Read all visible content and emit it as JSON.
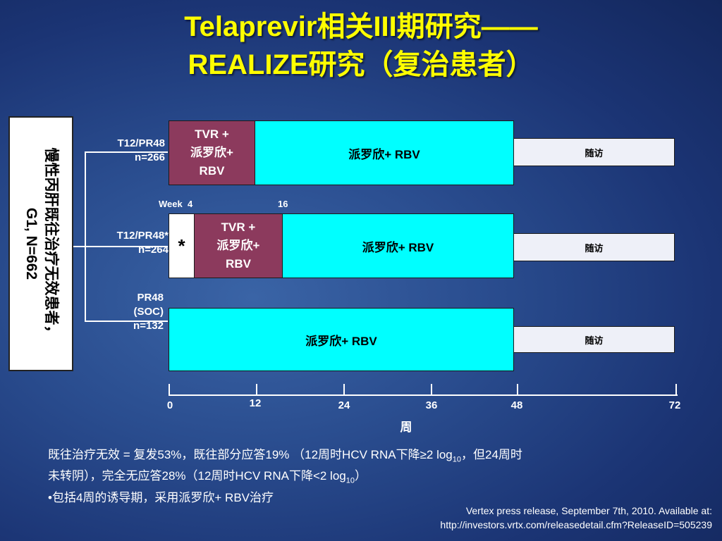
{
  "title": {
    "line1": "Telaprevir相关III期研究——",
    "line2": "REALIZE研究（复治患者）"
  },
  "population": {
    "line1": "慢性丙肝既往治疗无效患者，",
    "line2": "G1, N=662"
  },
  "arms": [
    {
      "name_line1": "T12/PR48",
      "name_line2": "n=266",
      "tvr_label": [
        "TVR +",
        "派罗欣+",
        "RBV"
      ],
      "peg_label": "派罗欣+ RBV",
      "followup_label": "随访"
    },
    {
      "name_line1": "T12/PR48*",
      "name_line2": "n=264",
      "lead_in_label": "*",
      "tvr_label": [
        "TVR +",
        "派罗欣+",
        "RBV"
      ],
      "peg_label": "派罗欣+ RBV",
      "followup_label": "随访"
    },
    {
      "name_line1": "PR48",
      "name_line2": "(SOC)",
      "name_line3": "n=132",
      "peg_label": "派罗欣+ RBV",
      "followup_label": "随访"
    }
  ],
  "week_markers": {
    "label": "Week",
    "first": "4",
    "second": "16"
  },
  "axis": {
    "ticks": [
      "0",
      "12",
      "24",
      "36",
      "48",
      "72"
    ],
    "title": "周"
  },
  "notes": {
    "line1_a": "既往治疗无效 = 复发53%，既往部分应答19% （12周时HCV RNA下降≥2 log",
    "line1_sub": "10",
    "line1_b": "，但24周时",
    "line2_a": "未转阴），完全无应答28%（12周时HCV RNA下降<2 log",
    "line2_sub": "10",
    "line2_b": "）",
    "line3": "•包括4周的诱导期，采用派罗欣+ RBV治疗"
  },
  "reference": {
    "line1": "Vertex press release, September 7th, 2010. Available at:",
    "line2": "http://investors.vrtx.com/releasedetail.cfm?ReleaseID=505239"
  },
  "colors": {
    "title": "#ffff00",
    "tvr": "#8c3a5d",
    "peg": "#00ffff",
    "followup": "#eef0f8",
    "background": "#2a4d8f"
  }
}
